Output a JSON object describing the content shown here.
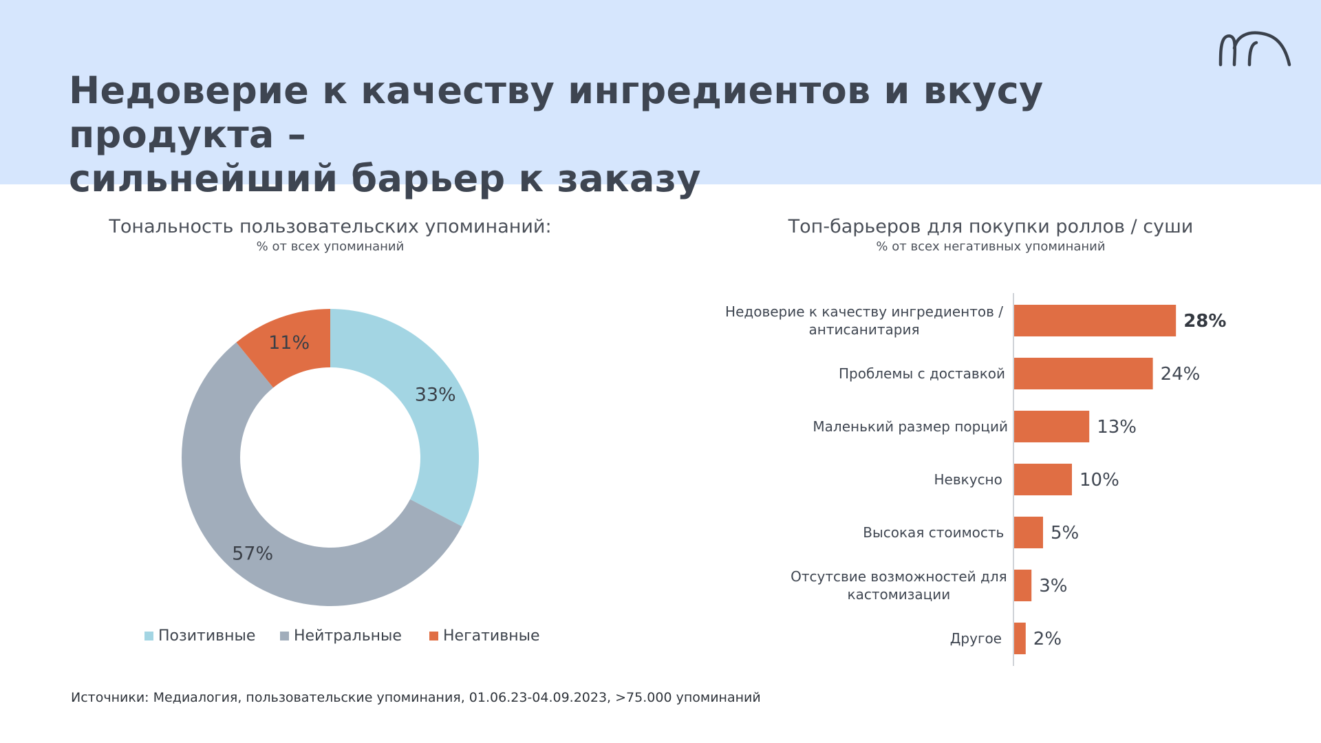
{
  "header": {
    "title_line1": "Недоверие к качеству ингредиентов и вкусу продукта –",
    "title_line2": "сильнейший барьер к заказу"
  },
  "colors": {
    "header_bg": "#d6e6fd",
    "positive": "#a3d5e3",
    "neutral": "#a1adbb",
    "negative": "#e06e44"
  },
  "donut": {
    "title": "Тональность пользовательских упоминаний:",
    "subtitle": "% от всех упоминаний"
  },
  "bars": {
    "title": "Топ-барьеров для покупки роллов / суши",
    "subtitle": "% от всех негативных упоминаний"
  },
  "footnote": "Источники: Медиалогия, пользовательские упоминания, 01.06.23-04.09.2023, >75.000 упоминаний",
  "chart_data": [
    {
      "type": "pie",
      "title": "Тональность пользовательских упоминаний:",
      "subtitle": "% от всех упоминаний",
      "donut": true,
      "categories": [
        "Позитивные",
        "Нейтральные",
        "Негативные"
      ],
      "values": [
        33,
        57,
        11
      ],
      "labels": [
        "33%",
        "57%",
        "11%"
      ],
      "colors": [
        "#a3d5e3",
        "#a1adbb",
        "#e06e44"
      ],
      "legend_position": "bottom"
    },
    {
      "type": "bar",
      "orientation": "horizontal",
      "title": "Топ-барьеров для покупки роллов / суши",
      "subtitle": "% от всех негативных упоминаний",
      "categories": [
        [
          "Недоверие к качеству ингредиентов /",
          "антисанитария"
        ],
        [
          "Проблемы с доставкой"
        ],
        [
          "Маленький размер порций"
        ],
        [
          "Невкусно"
        ],
        [
          "Высокая стоимость"
        ],
        [
          "Отсутсвие возможностей для",
          "кастомизации"
        ],
        [
          "Другое"
        ]
      ],
      "values": [
        28,
        24,
        13,
        10,
        5,
        3,
        2
      ],
      "labels": [
        "28%",
        "24%",
        "13%",
        "10%",
        "5%",
        "3%",
        "2%"
      ],
      "highlight_index": 0,
      "color": "#e06e44",
      "xlim": [
        0,
        30
      ]
    }
  ]
}
